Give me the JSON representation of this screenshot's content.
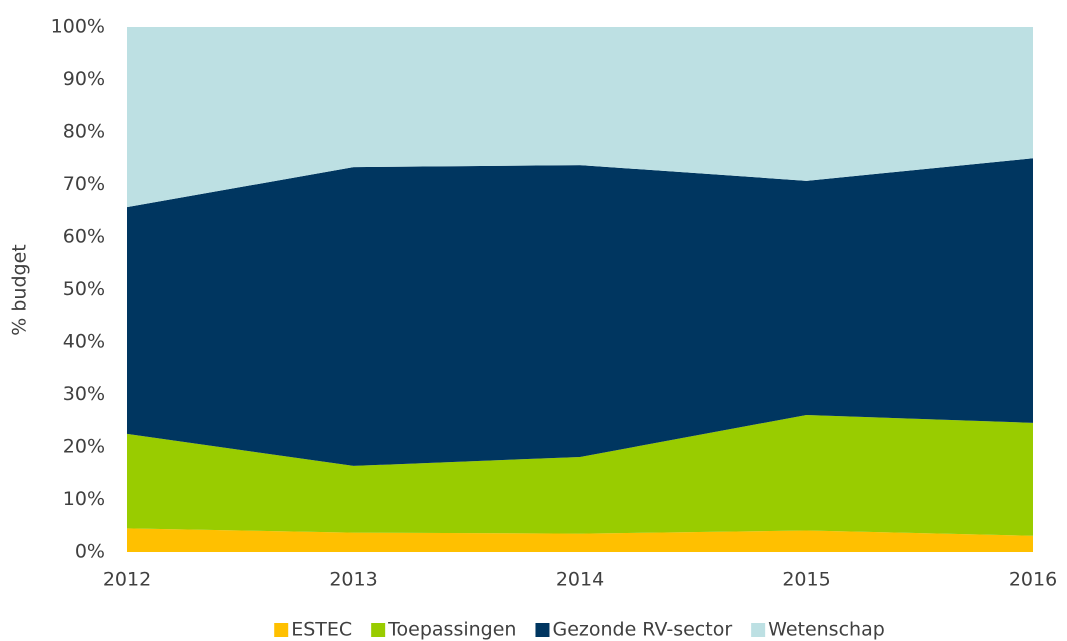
{
  "chart_data": {
    "type": "area",
    "stacked": true,
    "y_label": "% budget",
    "x": [
      2012,
      2013,
      2014,
      2015,
      2016
    ],
    "xlim": [
      2012,
      2016
    ],
    "xticks": [
      2012,
      2013,
      2014,
      2015,
      2016
    ],
    "ylim": [
      0,
      100
    ],
    "yticks": [
      {
        "value": 0,
        "label": "0%"
      },
      {
        "value": 10,
        "label": "10%"
      },
      {
        "value": 20,
        "label": "20%"
      },
      {
        "value": 30,
        "label": "30%"
      },
      {
        "value": 40,
        "label": "40%"
      },
      {
        "value": 50,
        "label": "50%"
      },
      {
        "value": 60,
        "label": "60%"
      },
      {
        "value": 70,
        "label": "70%"
      },
      {
        "value": 80,
        "label": "80%"
      },
      {
        "value": 90,
        "label": "90%"
      },
      {
        "value": 100,
        "label": "100%"
      }
    ],
    "legend": "bottom",
    "series": [
      {
        "name": "ESTEC",
        "color": "#ffc000",
        "values": [
          4.5,
          3.7,
          3.5,
          4.1,
          3.1
        ]
      },
      {
        "name": "Toepassingen",
        "color": "#99cc00",
        "values": [
          18,
          12.7,
          14.6,
          22,
          21.5
        ]
      },
      {
        "name": "Gezonde RV-sector",
        "color": "#003660",
        "values": [
          43.2,
          56.9,
          55.6,
          44.6,
          50.4
        ]
      },
      {
        "name": "Wetenschap",
        "color": "#bde0e3",
        "values": [
          34.3,
          26.7,
          26.3,
          29.3,
          25
        ]
      }
    ]
  }
}
